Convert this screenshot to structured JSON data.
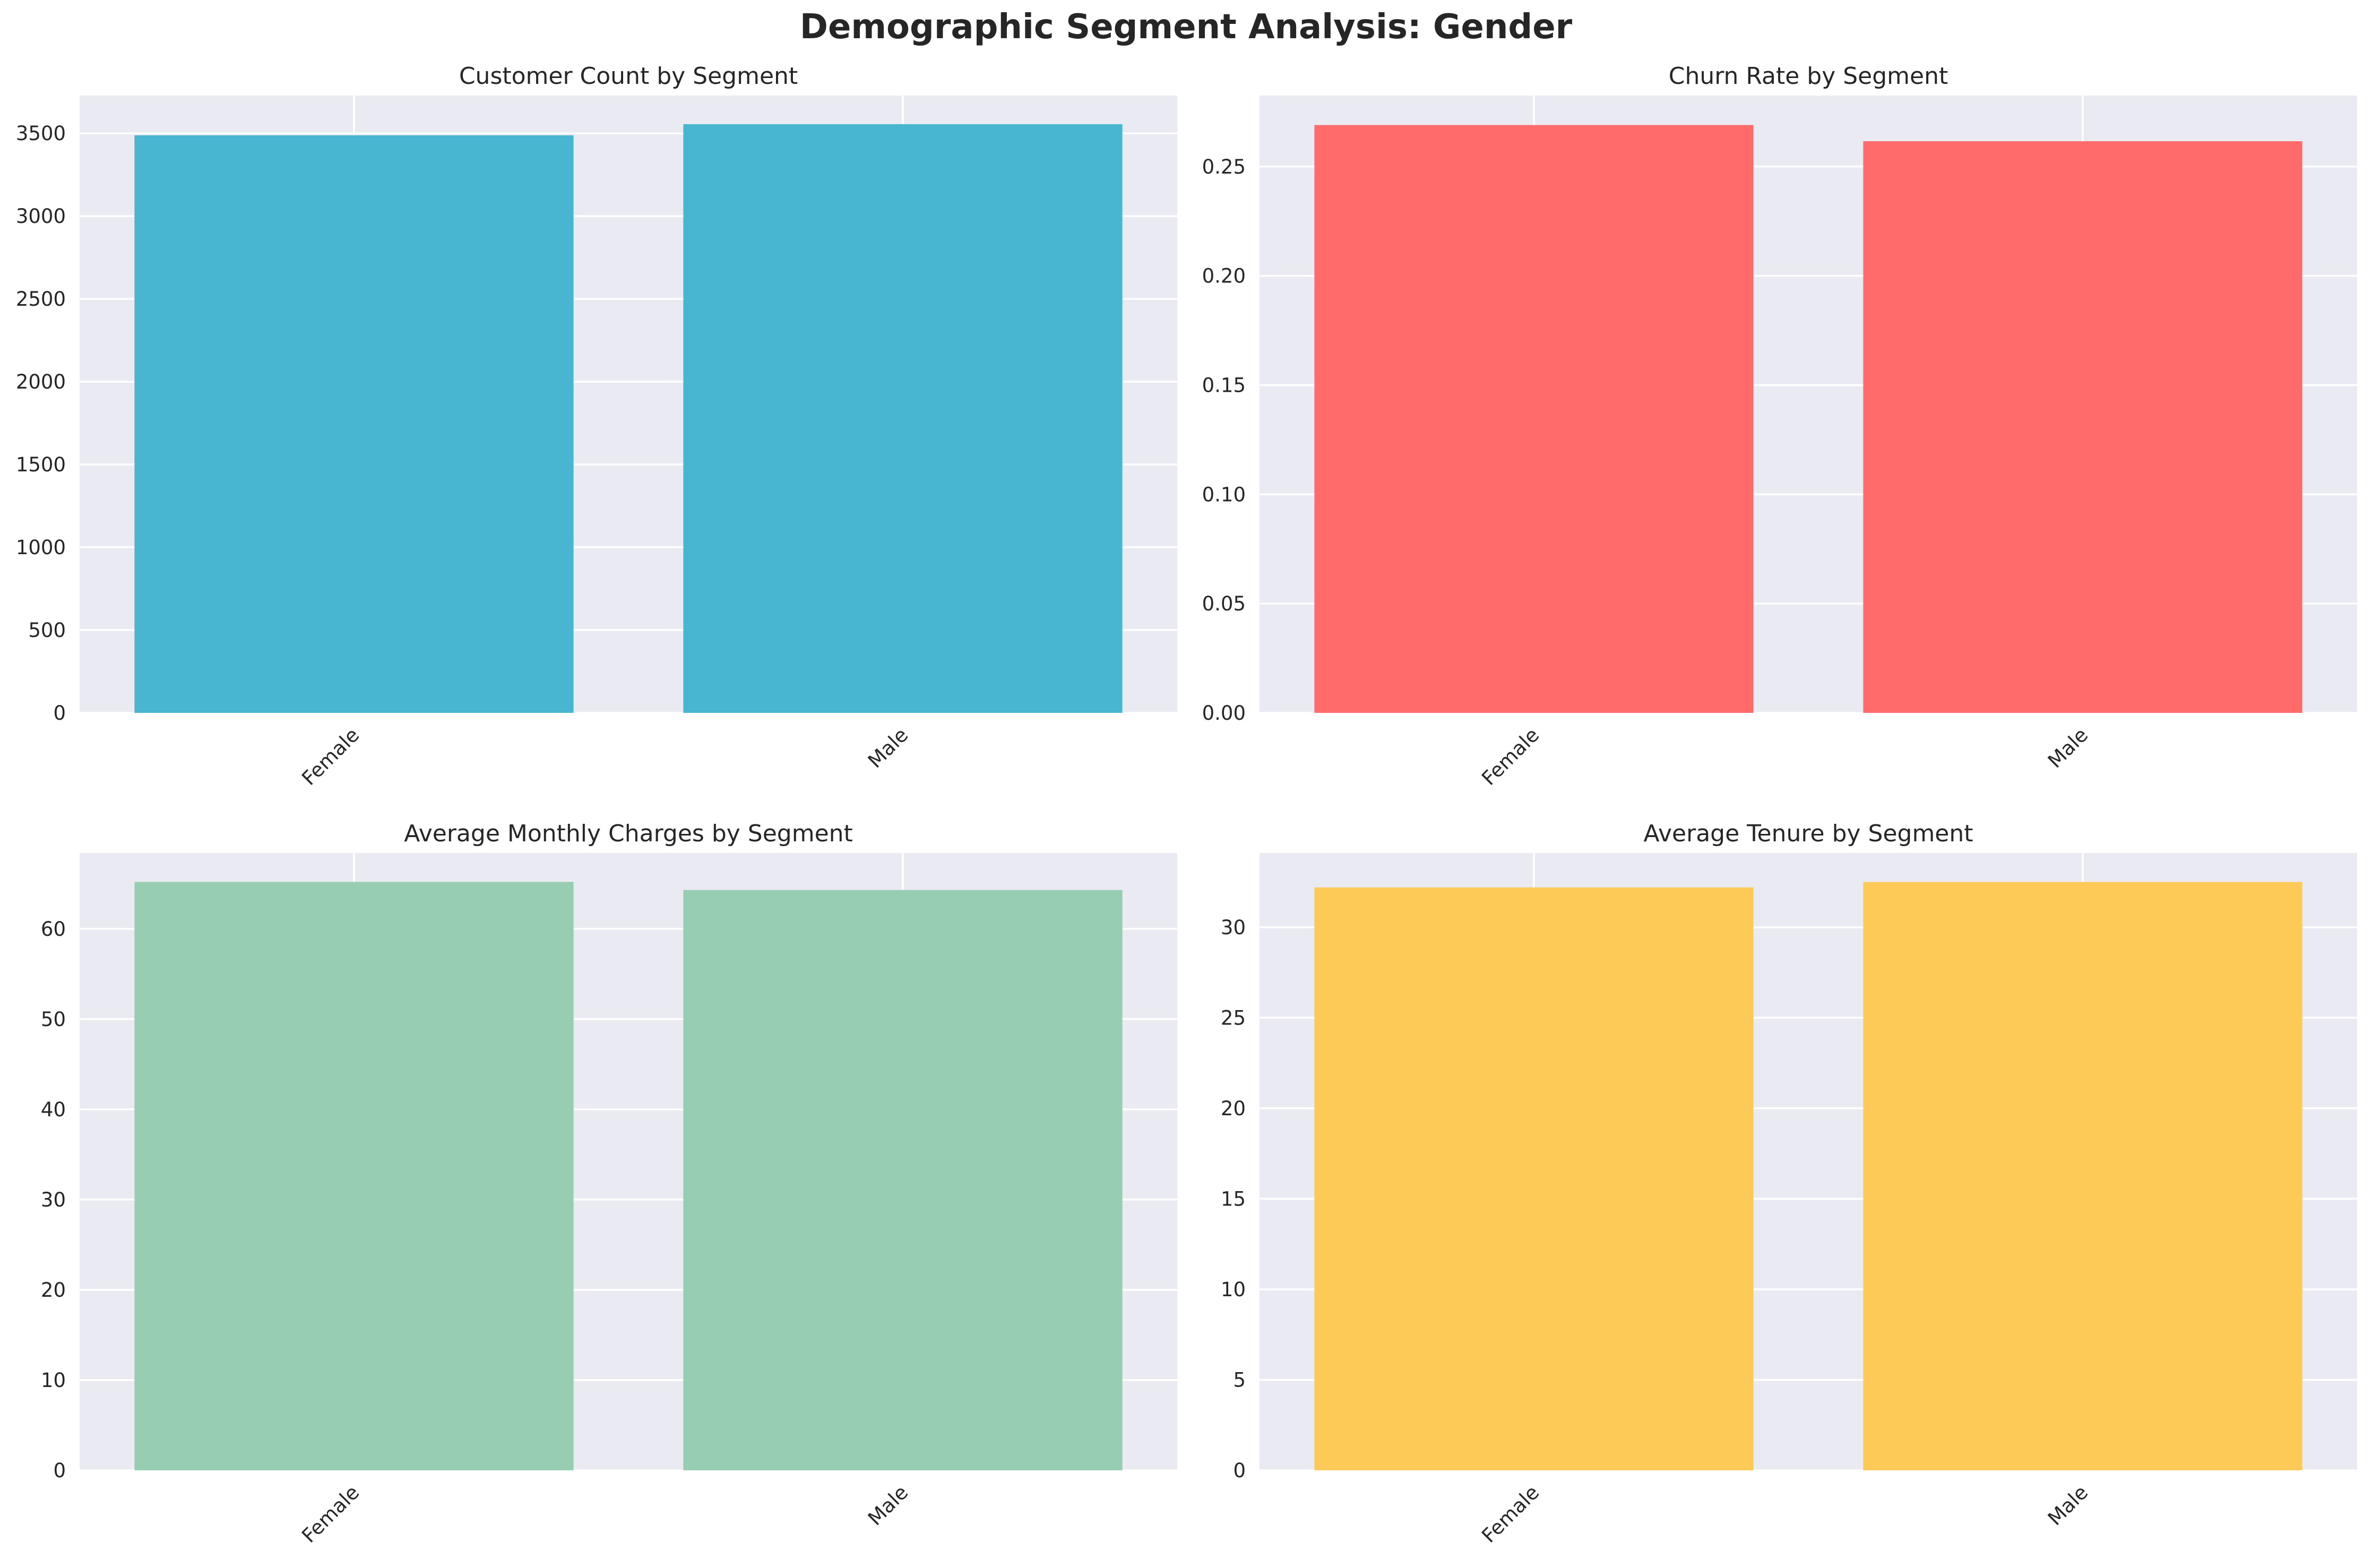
{
  "title": "Demographic Segment Analysis: Gender",
  "chart_data": [
    {
      "type": "bar",
      "title": "Customer Count by Segment",
      "categories": [
        "Female",
        "Male"
      ],
      "values": [
        3488,
        3555
      ],
      "ylim": [
        0,
        3728
      ],
      "yticks": [
        0,
        500,
        1000,
        1500,
        2000,
        2500,
        3000,
        3500
      ],
      "ytick_labels": [
        "0",
        "500",
        "1000",
        "1500",
        "2000",
        "2500",
        "3000",
        "3500"
      ],
      "color": "#48B5D1",
      "grid": true
    },
    {
      "type": "bar",
      "title": "Churn Rate by Segment",
      "categories": [
        "Female",
        "Male"
      ],
      "values": [
        0.269,
        0.2616
      ],
      "ylim": [
        0,
        0.2825
      ],
      "yticks": [
        0,
        0.05,
        0.1,
        0.15,
        0.2,
        0.25
      ],
      "ytick_labels": [
        "0.00",
        "0.05",
        "0.10",
        "0.15",
        "0.20",
        "0.25"
      ],
      "color": "#FF6B6B",
      "grid": true
    },
    {
      "type": "bar",
      "title": "Average Monthly Charges by Segment",
      "categories": [
        "Female",
        "Male"
      ],
      "values": [
        65.2,
        64.3
      ],
      "ylim": [
        0,
        68.4
      ],
      "yticks": [
        0,
        10,
        20,
        30,
        40,
        50,
        60
      ],
      "ytick_labels": [
        "0",
        "10",
        "20",
        "30",
        "40",
        "50",
        "60"
      ],
      "color": "#97CDB1",
      "grid": true
    },
    {
      "type": "bar",
      "title": "Average Tenure by Segment",
      "categories": [
        "Female",
        "Male"
      ],
      "values": [
        32.2,
        32.5
      ],
      "ylim": [
        0,
        34.1
      ],
      "yticks": [
        0,
        5,
        10,
        15,
        20,
        25,
        30
      ],
      "ytick_labels": [
        "0",
        "5",
        "10",
        "15",
        "20",
        "25",
        "30"
      ],
      "color": "#FDC957",
      "grid": true
    }
  ]
}
